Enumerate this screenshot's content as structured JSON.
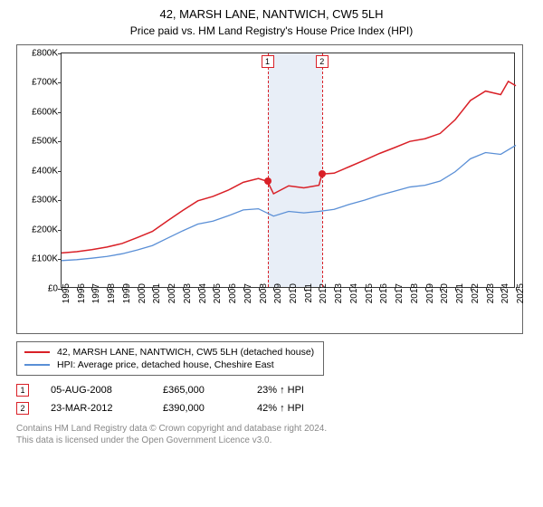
{
  "title": "42, MARSH LANE, NANTWICH, CW5 5LH",
  "subtitle": "Price paid vs. HM Land Registry's House Price Index (HPI)",
  "chart": {
    "type": "line",
    "background_color": "#ffffff",
    "plot_border_color": "#333333",
    "x_axis": {
      "min": 1995,
      "max": 2025,
      "tick_step": 1,
      "labels": [
        "1995",
        "1996",
        "1997",
        "1998",
        "1999",
        "2000",
        "2001",
        "2002",
        "2003",
        "2004",
        "2005",
        "2006",
        "2007",
        "2008",
        "2009",
        "2010",
        "2011",
        "2012",
        "2013",
        "2014",
        "2015",
        "2016",
        "2017",
        "2018",
        "2019",
        "2020",
        "2021",
        "2022",
        "2023",
        "2024",
        "2025"
      ],
      "label_fontsize": 10,
      "label_rotation": -90
    },
    "y_axis": {
      "min": 0,
      "max": 800000,
      "tick_step": 100000,
      "labels": [
        "£0",
        "£100K",
        "£200K",
        "£300K",
        "£400K",
        "£500K",
        "£600K",
        "£700K",
        "£800K"
      ],
      "label_fontsize": 10
    },
    "shaded_band": {
      "x_start": 2008.6,
      "x_end": 2012.2,
      "fill_color": "#e8eef7"
    },
    "event_lines": [
      {
        "x": 2008.6,
        "label": "1",
        "line_color": "#d92027",
        "line_style": "dashed"
      },
      {
        "x": 2012.2,
        "label": "2",
        "line_color": "#d92027",
        "line_style": "dashed"
      }
    ],
    "series": [
      {
        "name": "42, MARSH LANE, NANTWICH, CW5 5LH (detached house)",
        "color": "#d92027",
        "line_width": 1.5,
        "points": [
          [
            1995,
            122000
          ],
          [
            1996,
            126000
          ],
          [
            1997,
            133000
          ],
          [
            1998,
            142000
          ],
          [
            1999,
            154000
          ],
          [
            2000,
            174000
          ],
          [
            2001,
            195000
          ],
          [
            2002,
            231000
          ],
          [
            2003,
            266000
          ],
          [
            2004,
            299000
          ],
          [
            2005,
            314000
          ],
          [
            2006,
            335000
          ],
          [
            2007,
            362000
          ],
          [
            2008,
            375000
          ],
          [
            2008.6,
            365000
          ],
          [
            2009,
            323000
          ],
          [
            2010,
            350000
          ],
          [
            2011,
            343000
          ],
          [
            2012,
            352000
          ],
          [
            2012.2,
            390000
          ],
          [
            2013,
            393000
          ],
          [
            2014,
            415000
          ],
          [
            2015,
            437000
          ],
          [
            2016,
            460000
          ],
          [
            2017,
            480000
          ],
          [
            2018,
            501000
          ],
          [
            2019,
            510000
          ],
          [
            2020,
            528000
          ],
          [
            2021,
            575000
          ],
          [
            2022,
            640000
          ],
          [
            2023,
            672000
          ],
          [
            2024,
            660000
          ],
          [
            2024.5,
            705000
          ],
          [
            2025,
            690000
          ]
        ]
      },
      {
        "name": "HPI: Average price, detached house, Cheshire East",
        "color": "#5a8fd6",
        "line_width": 1.3,
        "points": [
          [
            1995,
            96000
          ],
          [
            1996,
            99000
          ],
          [
            1997,
            104000
          ],
          [
            1998,
            110000
          ],
          [
            1999,
            119000
          ],
          [
            2000,
            132000
          ],
          [
            2001,
            147000
          ],
          [
            2002,
            172000
          ],
          [
            2003,
            197000
          ],
          [
            2004,
            220000
          ],
          [
            2005,
            230000
          ],
          [
            2006,
            248000
          ],
          [
            2007,
            268000
          ],
          [
            2008,
            272000
          ],
          [
            2009,
            247000
          ],
          [
            2010,
            263000
          ],
          [
            2011,
            258000
          ],
          [
            2012,
            263000
          ],
          [
            2013,
            270000
          ],
          [
            2014,
            287000
          ],
          [
            2015,
            301000
          ],
          [
            2016,
            318000
          ],
          [
            2017,
            332000
          ],
          [
            2018,
            346000
          ],
          [
            2019,
            352000
          ],
          [
            2020,
            366000
          ],
          [
            2021,
            398000
          ],
          [
            2022,
            442000
          ],
          [
            2023,
            463000
          ],
          [
            2024,
            457000
          ],
          [
            2025,
            488000
          ]
        ]
      }
    ],
    "sale_points": [
      {
        "x": 2008.6,
        "y": 365000,
        "color": "#d92027",
        "size": 8
      },
      {
        "x": 2012.2,
        "y": 390000,
        "color": "#d92027",
        "size": 8
      }
    ]
  },
  "legend": {
    "items": [
      {
        "color": "#d92027",
        "label": "42, MARSH LANE, NANTWICH, CW5 5LH (detached house)"
      },
      {
        "color": "#5a8fd6",
        "label": "HPI: Average price, detached house, Cheshire East"
      }
    ]
  },
  "transactions": [
    {
      "marker": "1",
      "date": "05-AUG-2008",
      "price": "£365,000",
      "hpi": "23% ↑ HPI"
    },
    {
      "marker": "2",
      "date": "23-MAR-2012",
      "price": "£390,000",
      "hpi": "42% ↑ HPI"
    }
  ],
  "footer": {
    "line1": "Contains HM Land Registry data © Crown copyright and database right 2024.",
    "line2": "This data is licensed under the Open Government Licence v3.0."
  }
}
